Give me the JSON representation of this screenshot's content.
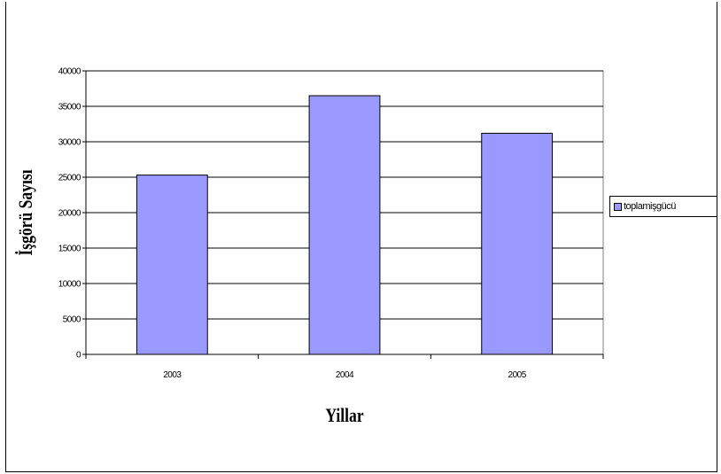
{
  "chart_data": {
    "type": "bar",
    "title": "",
    "title_fragment": "",
    "xlabel": "Yillar",
    "ylabel": "İşgörü Sayısı",
    "categories": [
      "2003",
      "2004",
      "2005"
    ],
    "series": [
      {
        "name": "toplamişgücü",
        "values": [
          25300,
          36500,
          31200
        ],
        "color": "#9999ff"
      }
    ],
    "ylim": [
      0,
      40000
    ],
    "yticks": [
      0,
      5000,
      10000,
      15000,
      20000,
      25000,
      30000,
      35000,
      40000
    ],
    "grid": true,
    "legend": "right",
    "plot_background": "#ffffff",
    "bar_border": "#000000"
  }
}
